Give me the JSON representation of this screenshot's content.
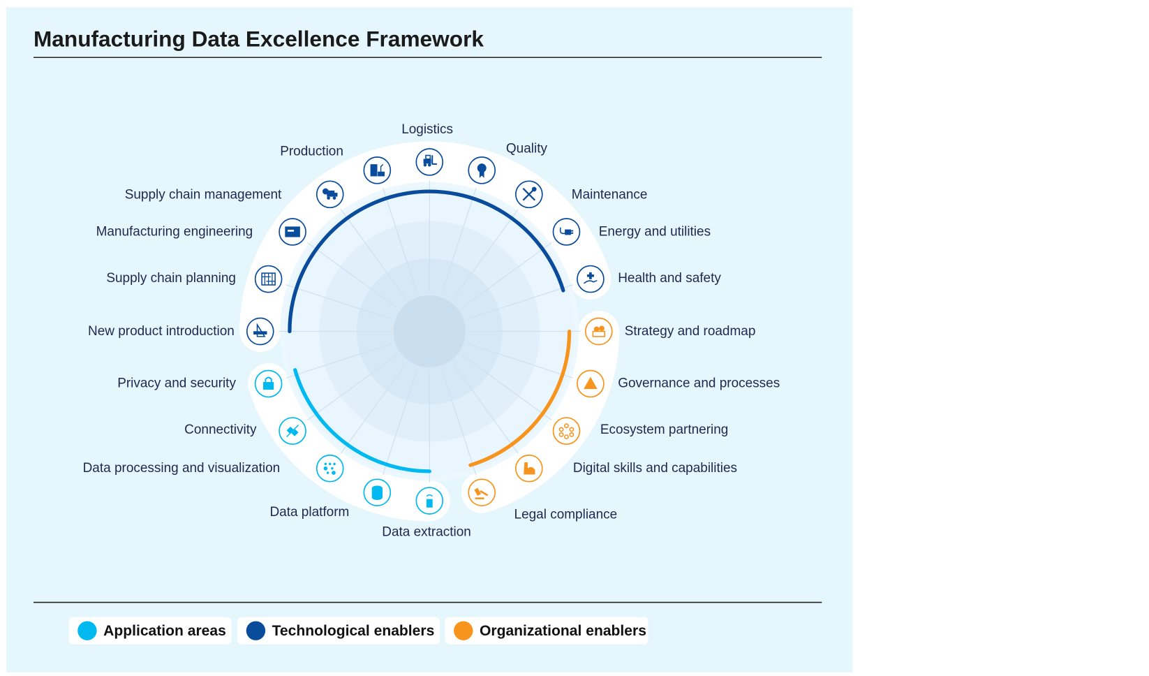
{
  "title": "Manufacturing Data Excellence Framework",
  "colors": {
    "application": "#00b9f0",
    "technological": "#0a4c9c",
    "organizational": "#f7941d",
    "background": "#e5f6fd"
  },
  "items": [
    {
      "label": "Logistics",
      "group": "technological",
      "icon": "forklift-icon"
    },
    {
      "label": "Quality",
      "group": "technological",
      "icon": "award-ribbon-icon"
    },
    {
      "label": "Maintenance",
      "group": "technological",
      "icon": "wrench-screwdriver-icon"
    },
    {
      "label": "Energy and utilities",
      "group": "technological",
      "icon": "plug-icon"
    },
    {
      "label": "Health and safety",
      "group": "technological",
      "icon": "hand-cross-icon"
    },
    {
      "label": "Strategy and roadmap",
      "group": "organizational",
      "icon": "map-pin-icon"
    },
    {
      "label": "Governance and processes",
      "group": "organizational",
      "icon": "pyramid-icon"
    },
    {
      "label": "Ecosystem partnering",
      "group": "organizational",
      "icon": "network-icon"
    },
    {
      "label": "Digital skills and capabilities",
      "group": "organizational",
      "icon": "muscle-arm-icon"
    },
    {
      "label": "Legal compliance",
      "group": "organizational",
      "icon": "gavel-icon"
    },
    {
      "label": "Data extraction",
      "group": "application",
      "icon": "sensor-device-icon"
    },
    {
      "label": "Data platform",
      "group": "application",
      "icon": "database-icon"
    },
    {
      "label": "Data processing and visualization",
      "group": "application",
      "icon": "binary-gears-icon"
    },
    {
      "label": "Connectivity",
      "group": "application",
      "icon": "connector-icon"
    },
    {
      "label": "Privacy and security",
      "group": "application",
      "icon": "padlock-icon"
    },
    {
      "label": "New product introduction",
      "group": "technological",
      "icon": "drafting-tools-icon"
    },
    {
      "label": "Supply chain planning",
      "group": "technological",
      "icon": "planning-board-icon"
    },
    {
      "label": "Manufacturing engineering",
      "group": "technological",
      "icon": "machine-panel-icon"
    },
    {
      "label": "Supply chain management",
      "group": "technological",
      "icon": "delivery-truck-icon"
    },
    {
      "label": "Production",
      "group": "technological",
      "icon": "factory-robot-icon"
    }
  ],
  "legend": [
    {
      "label": "Application areas",
      "group": "application"
    },
    {
      "label": "Technological enablers",
      "group": "technological"
    },
    {
      "label": "Organizational enablers",
      "group": "organizational"
    }
  ]
}
